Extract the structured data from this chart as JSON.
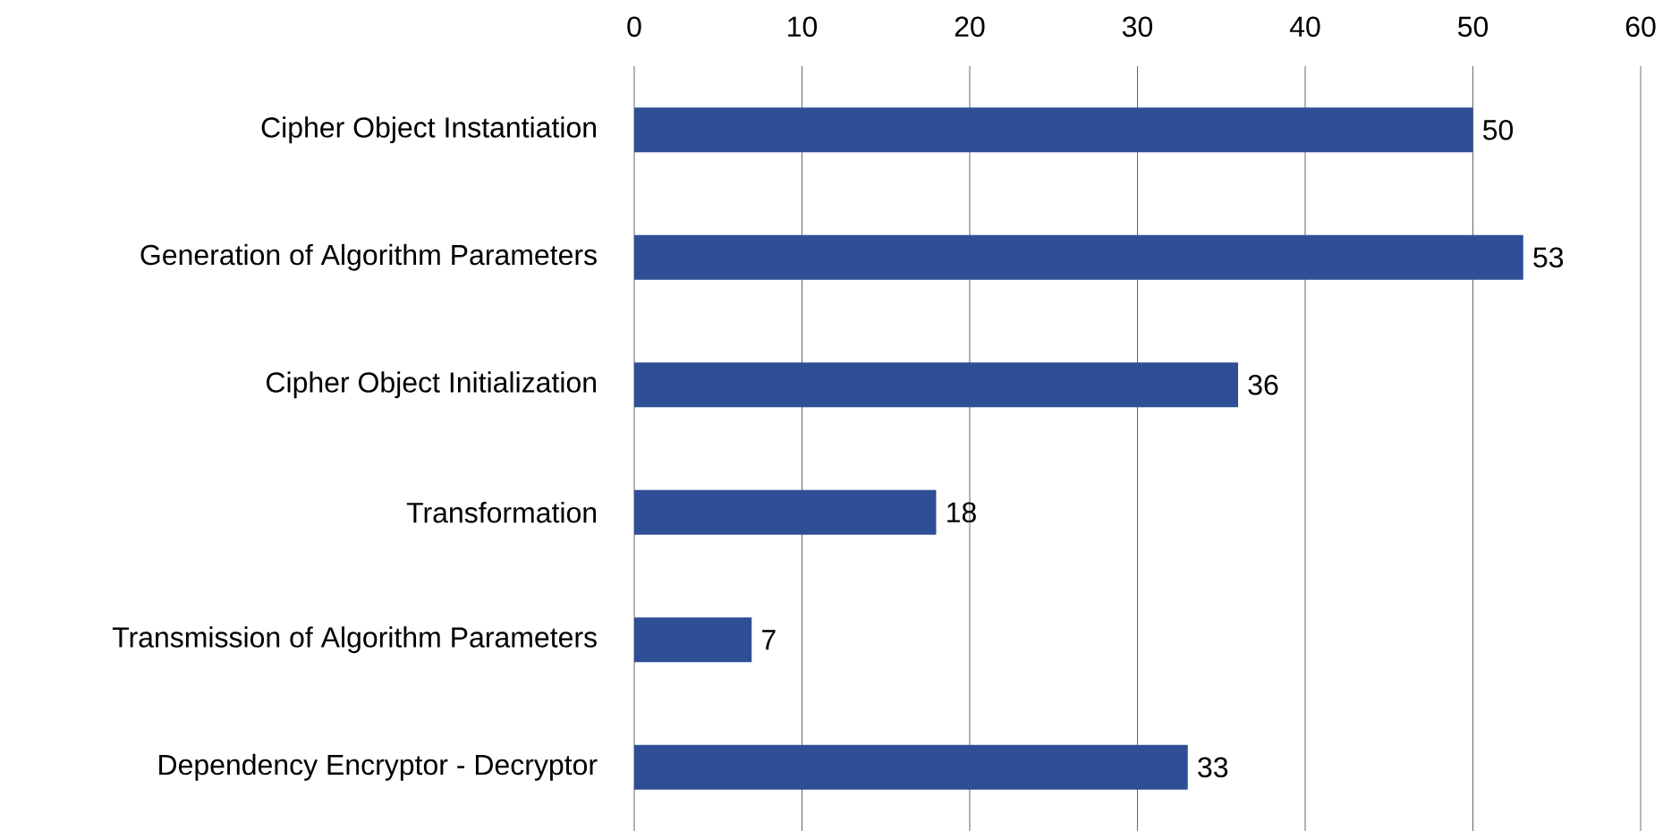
{
  "chart_data": {
    "type": "bar",
    "orientation": "horizontal",
    "categories": [
      "Cipher Object Instantiation",
      "Generation of Algorithm Parameters",
      "Cipher Object Initialization",
      "Transformation",
      "Transmission of Algorithm Parameters",
      "Dependency Encryptor - Decryptor"
    ],
    "values": [
      50,
      53,
      36,
      18,
      7,
      33
    ],
    "color": "#2e4f96",
    "xlim": [
      0,
      60
    ],
    "xticks": [
      0,
      10,
      20,
      30,
      40,
      50,
      60
    ],
    "grid": "x",
    "data_labels": true
  }
}
